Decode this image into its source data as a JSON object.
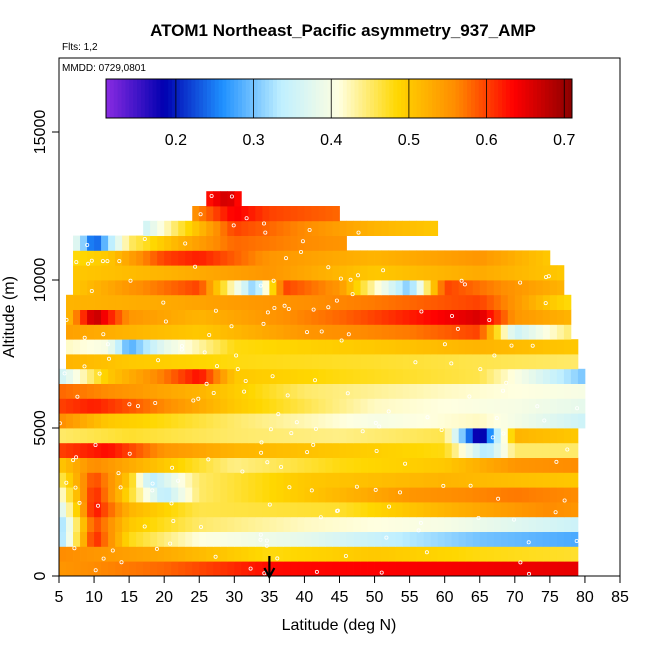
{
  "chart_data": {
    "type": "heatmap",
    "title": "ATOM1 Northeast_Pacific asymmetry_937_AMP",
    "annotations": {
      "flights": "Flts: 1,2",
      "dates": "MMDD: 0729,0801"
    },
    "xlabel": "Latitude (deg N)",
    "ylabel": "Altitude (m)",
    "xlim": [
      5,
      85
    ],
    "ylim": [
      0,
      17500
    ],
    "x_ticks": [
      5,
      10,
      15,
      20,
      25,
      30,
      35,
      40,
      45,
      50,
      55,
      60,
      65,
      70,
      75,
      80,
      85
    ],
    "y_ticks": [
      0,
      5000,
      10000,
      15000
    ],
    "colorbar": {
      "range": [
        0.11,
        0.71
      ],
      "ticks": [
        0.2,
        0.3,
        0.4,
        0.5,
        0.6,
        0.7
      ],
      "colors": [
        "#8A2BE2",
        "#0000B0",
        "#1E90FF",
        "#BFEFFF",
        "#FFFFE0",
        "#FFD700",
        "#FF8C00",
        "#FF0000",
        "#8B0000"
      ]
    },
    "marker": {
      "label": "arrow",
      "x": 35
    },
    "layers": [
      {
        "alt_bottom": 0,
        "alt_top": 500,
        "lat_min": 5,
        "lat_max": 79,
        "profile": [
          [
            5,
            0.55
          ],
          [
            20,
            0.58
          ],
          [
            35,
            0.63
          ],
          [
            60,
            0.64
          ],
          [
            79,
            0.65
          ]
        ]
      },
      {
        "alt_bottom": 500,
        "alt_top": 1000,
        "lat_min": 5,
        "lat_max": 79,
        "profile": [
          [
            5,
            0.56
          ],
          [
            20,
            0.53
          ],
          [
            35,
            0.48
          ],
          [
            50,
            0.5
          ],
          [
            65,
            0.48
          ],
          [
            79,
            0.47
          ]
        ]
      },
      {
        "alt_bottom": 1000,
        "alt_top": 1500,
        "lat_min": 5,
        "lat_max": 79,
        "profile": [
          [
            5,
            0.3
          ],
          [
            10,
            0.62
          ],
          [
            15,
            0.48
          ],
          [
            25,
            0.41
          ],
          [
            40,
            0.38
          ],
          [
            55,
            0.33
          ],
          [
            65,
            0.3
          ],
          [
            79,
            0.28
          ]
        ]
      },
      {
        "alt_bottom": 1500,
        "alt_top": 2000,
        "lat_min": 5,
        "lat_max": 79,
        "profile": [
          [
            5,
            0.3
          ],
          [
            10,
            0.6
          ],
          [
            15,
            0.5
          ],
          [
            25,
            0.45
          ],
          [
            40,
            0.42
          ],
          [
            60,
            0.4
          ],
          [
            79,
            0.35
          ]
        ]
      },
      {
        "alt_bottom": 2000,
        "alt_top": 2500,
        "lat_min": 5,
        "lat_max": 79,
        "profile": [
          [
            5,
            0.35
          ],
          [
            10,
            0.63
          ],
          [
            15,
            0.52
          ],
          [
            25,
            0.46
          ],
          [
            45,
            0.47
          ],
          [
            60,
            0.52
          ],
          [
            75,
            0.56
          ],
          [
            79,
            0.55
          ]
        ]
      },
      {
        "alt_bottom": 2500,
        "alt_top": 3000,
        "lat_min": 5,
        "lat_max": 79,
        "profile": [
          [
            5,
            0.4
          ],
          [
            10,
            0.62
          ],
          [
            15,
            0.48
          ],
          [
            20,
            0.33
          ],
          [
            25,
            0.45
          ],
          [
            40,
            0.5
          ],
          [
            55,
            0.55
          ],
          [
            70,
            0.57
          ],
          [
            79,
            0.56
          ]
        ]
      },
      {
        "alt_bottom": 3000,
        "alt_top": 3500,
        "lat_min": 5,
        "lat_max": 79,
        "profile": [
          [
            5,
            0.45
          ],
          [
            10,
            0.6
          ],
          [
            15,
            0.5
          ],
          [
            18,
            0.33
          ],
          [
            25,
            0.45
          ],
          [
            40,
            0.5
          ],
          [
            60,
            0.52
          ],
          [
            79,
            0.5
          ]
        ]
      },
      {
        "alt_bottom": 3500,
        "alt_top": 4000,
        "lat_min": 5,
        "lat_max": 79,
        "profile": [
          [
            5,
            0.5
          ],
          [
            10,
            0.56
          ],
          [
            20,
            0.5
          ],
          [
            30,
            0.44
          ],
          [
            45,
            0.48
          ],
          [
            60,
            0.5
          ],
          [
            70,
            0.55
          ],
          [
            79,
            0.56
          ]
        ]
      },
      {
        "alt_bottom": 4000,
        "alt_top": 4500,
        "lat_min": 5,
        "lat_max": 79,
        "profile": [
          [
            5,
            0.6
          ],
          [
            12,
            0.63
          ],
          [
            20,
            0.55
          ],
          [
            30,
            0.52
          ],
          [
            45,
            0.5
          ],
          [
            60,
            0.48
          ],
          [
            66,
            0.32
          ],
          [
            70,
            0.45
          ],
          [
            79,
            0.45
          ]
        ]
      },
      {
        "alt_bottom": 4500,
        "alt_top": 5000,
        "lat_min": 5,
        "lat_max": 79,
        "profile": [
          [
            5,
            0.45
          ],
          [
            15,
            0.47
          ],
          [
            30,
            0.45
          ],
          [
            45,
            0.44
          ],
          [
            60,
            0.46
          ],
          [
            65,
            0.15
          ],
          [
            70,
            0.52
          ],
          [
            79,
            0.5
          ]
        ]
      },
      {
        "alt_bottom": 5000,
        "alt_top": 5500,
        "lat_min": 5,
        "lat_max": 80,
        "profile": [
          [
            5,
            0.56
          ],
          [
            12,
            0.5
          ],
          [
            20,
            0.48
          ],
          [
            30,
            0.45
          ],
          [
            50,
            0.4
          ],
          [
            65,
            0.42
          ],
          [
            80,
            0.35
          ]
        ]
      },
      {
        "alt_bottom": 5500,
        "alt_top": 6000,
        "lat_min": 5,
        "lat_max": 80,
        "profile": [
          [
            5,
            0.6
          ],
          [
            10,
            0.62
          ],
          [
            20,
            0.56
          ],
          [
            30,
            0.5
          ],
          [
            50,
            0.42
          ],
          [
            70,
            0.4
          ],
          [
            80,
            0.38
          ]
        ]
      },
      {
        "alt_bottom": 6000,
        "alt_top": 6500,
        "lat_min": 5,
        "lat_max": 80,
        "profile": [
          [
            5,
            0.58
          ],
          [
            15,
            0.55
          ],
          [
            25,
            0.52
          ],
          [
            40,
            0.45
          ],
          [
            60,
            0.42
          ],
          [
            80,
            0.4
          ]
        ]
      },
      {
        "alt_bottom": 6500,
        "alt_top": 7000,
        "lat_min": 5,
        "lat_max": 80,
        "profile": [
          [
            5,
            0.35
          ],
          [
            12,
            0.5
          ],
          [
            20,
            0.57
          ],
          [
            25,
            0.63
          ],
          [
            30,
            0.5
          ],
          [
            45,
            0.48
          ],
          [
            65,
            0.46
          ],
          [
            80,
            0.3
          ]
        ]
      },
      {
        "alt_bottom": 7000,
        "alt_top": 7500,
        "lat_min": 6,
        "lat_max": 79,
        "profile": [
          [
            6,
            0.52
          ],
          [
            15,
            0.5
          ],
          [
            30,
            0.48
          ],
          [
            50,
            0.47
          ],
          [
            79,
            0.45
          ]
        ]
      },
      {
        "alt_bottom": 7500,
        "alt_top": 8000,
        "lat_min": 6,
        "lat_max": 79,
        "profile": [
          [
            6,
            0.42
          ],
          [
            12,
            0.4
          ],
          [
            15,
            0.28
          ],
          [
            20,
            0.38
          ],
          [
            30,
            0.48
          ],
          [
            50,
            0.5
          ],
          [
            65,
            0.52
          ],
          [
            79,
            0.5
          ]
        ]
      },
      {
        "alt_bottom": 8000,
        "alt_top": 8500,
        "lat_min": 6,
        "lat_max": 78,
        "profile": [
          [
            6,
            0.54
          ],
          [
            15,
            0.52
          ],
          [
            25,
            0.5
          ],
          [
            40,
            0.55
          ],
          [
            55,
            0.57
          ],
          [
            65,
            0.6
          ],
          [
            70,
            0.35
          ],
          [
            78,
            0.45
          ]
        ]
      },
      {
        "alt_bottom": 8500,
        "alt_top": 9000,
        "lat_min": 6,
        "lat_max": 78,
        "profile": [
          [
            6,
            0.5
          ],
          [
            10,
            0.68
          ],
          [
            15,
            0.55
          ],
          [
            25,
            0.52
          ],
          [
            45,
            0.58
          ],
          [
            55,
            0.62
          ],
          [
            65,
            0.66
          ],
          [
            70,
            0.55
          ],
          [
            78,
            0.52
          ]
        ]
      },
      {
        "alt_bottom": 9000,
        "alt_top": 9500,
        "lat_min": 6,
        "lat_max": 78,
        "profile": [
          [
            6,
            0.52
          ],
          [
            20,
            0.53
          ],
          [
            35,
            0.55
          ],
          [
            50,
            0.57
          ],
          [
            65,
            0.6
          ],
          [
            75,
            0.5
          ],
          [
            78,
            0.48
          ]
        ]
      },
      {
        "alt_bottom": 9500,
        "alt_top": 10000,
        "lat_min": 7,
        "lat_max": 77,
        "profile": [
          [
            7,
            0.5
          ],
          [
            15,
            0.55
          ],
          [
            25,
            0.6
          ],
          [
            33,
            0.3
          ],
          [
            37,
            0.6
          ],
          [
            45,
            0.55
          ],
          [
            55,
            0.3
          ],
          [
            60,
            0.6
          ],
          [
            70,
            0.55
          ],
          [
            77,
            0.52
          ]
        ]
      },
      {
        "alt_bottom": 10000,
        "alt_top": 10500,
        "lat_min": 7,
        "lat_max": 77,
        "profile": [
          [
            7,
            0.5
          ],
          [
            20,
            0.52
          ],
          [
            35,
            0.55
          ],
          [
            50,
            0.5
          ],
          [
            65,
            0.53
          ],
          [
            77,
            0.5
          ]
        ]
      },
      {
        "alt_bottom": 10500,
        "alt_top": 11000,
        "lat_min": 7,
        "lat_max": 75,
        "profile": [
          [
            7,
            0.48
          ],
          [
            12,
            0.5
          ],
          [
            20,
            0.6
          ],
          [
            25,
            0.62
          ],
          [
            35,
            0.55
          ],
          [
            50,
            0.52
          ],
          [
            65,
            0.55
          ],
          [
            75,
            0.5
          ]
        ]
      },
      {
        "alt_bottom": 11000,
        "alt_top": 11500,
        "lat_min": 7,
        "lat_max": 46,
        "profile": [
          [
            7,
            0.4
          ],
          [
            10,
            0.22
          ],
          [
            15,
            0.45
          ],
          [
            22,
            0.52
          ],
          [
            30,
            0.58
          ],
          [
            40,
            0.56
          ],
          [
            46,
            0.55
          ]
        ]
      },
      {
        "alt_bottom": 11500,
        "alt_top": 12000,
        "lat_min": 17,
        "lat_max": 59,
        "profile": [
          [
            17,
            0.35
          ],
          [
            22,
            0.46
          ],
          [
            30,
            0.6
          ],
          [
            40,
            0.56
          ],
          [
            50,
            0.52
          ],
          [
            59,
            0.5
          ]
        ]
      },
      {
        "alt_bottom": 12000,
        "alt_top": 12500,
        "lat_min": 24,
        "lat_max": 45,
        "profile": [
          [
            24,
            0.55
          ],
          [
            30,
            0.64
          ],
          [
            35,
            0.6
          ],
          [
            45,
            0.58
          ]
        ]
      },
      {
        "alt_bottom": 12500,
        "alt_top": 13000,
        "lat_min": 26,
        "lat_max": 31,
        "profile": [
          [
            26,
            0.62
          ],
          [
            29,
            0.67
          ],
          [
            31,
            0.62
          ]
        ]
      }
    ]
  }
}
